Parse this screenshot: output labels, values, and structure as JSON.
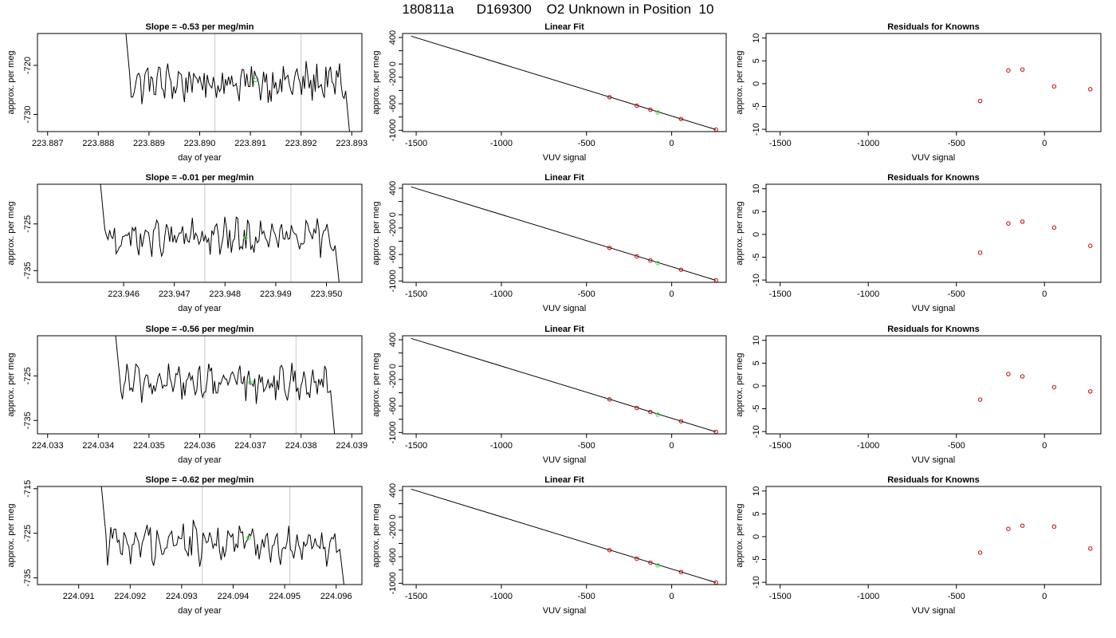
{
  "title": "180811a      D169300    O2 Unknown in Position  10",
  "colors": {
    "trace": "#000000",
    "known_point": "#cc0000",
    "unknown_point": "#33dd33",
    "interval_line": "#c8c8c8",
    "axis": "#000000"
  },
  "chart_data": [
    {
      "type": "line",
      "row": 1,
      "title": "Slope =  -0.53  per meg/min",
      "xlabel": "day of year",
      "ylabel": "approx. per meg",
      "xlim": [
        223.8868,
        223.8932
      ],
      "ylim": [
        -733.5,
        -713.5
      ],
      "xticks": [
        223.887,
        223.888,
        223.889,
        223.89,
        223.891,
        223.892,
        223.893
      ],
      "xtick_labels": [
        "223.887",
        "223.888",
        "223.889",
        "223.890",
        "223.891",
        "223.892",
        "223.893"
      ],
      "yticks": [
        -730,
        -720
      ],
      "ytick_labels": [
        "-730",
        "-720"
      ],
      "vlines": [
        223.8903,
        223.892
      ],
      "x_start": 223.8885,
      "x_end": 223.893,
      "baseline": -723.5,
      "amplitude": 3,
      "marker": {
        "x": 223.8911,
        "y": -723
      }
    },
    {
      "type": "scatter",
      "row": 1,
      "title": "Linear Fit",
      "xlabel": "VUV signal",
      "ylabel": "approx. per meg",
      "xlim": [
        -1580,
        320
      ],
      "ylim": [
        -1020,
        460
      ],
      "xticks": [
        -1500,
        -1000,
        -500,
        0
      ],
      "xtick_labels": [
        "-1500",
        "-1000",
        "-500",
        "0"
      ],
      "yticks": [
        -1000,
        -800,
        -600,
        -400,
        -200,
        0,
        200,
        400
      ],
      "ytick_labels": [
        "-1000",
        "",
        "-600",
        "",
        "-200",
        "0",
        "",
        "400"
      ],
      "fit_line": [
        [
          -1530,
          420
        ],
        [
          260,
          -990
        ]
      ],
      "knowns": [
        [
          -365,
          -500
        ],
        [
          -205,
          -630
        ],
        [
          -125,
          -690
        ],
        [
          55,
          -830
        ],
        [
          260,
          -990
        ]
      ],
      "unknown": [
        -82,
        -730
      ]
    },
    {
      "type": "scatter",
      "row": 1,
      "title": "Residuals for Knowns",
      "xlabel": "VUV signal",
      "ylabel": "approx. per meg",
      "xlim": [
        -1580,
        320
      ],
      "ylim": [
        -10.5,
        11
      ],
      "xticks": [
        -1500,
        -1000,
        -500,
        0
      ],
      "xtick_labels": [
        "-1500",
        "-1000",
        "-500",
        "0"
      ],
      "yticks": [
        -10,
        -5,
        0,
        5,
        10
      ],
      "ytick_labels": [
        "-10",
        "-5",
        "0",
        "5",
        "10"
      ],
      "points": [
        [
          -365,
          -3.8
        ],
        [
          -205,
          2.9
        ],
        [
          -125,
          3.1
        ],
        [
          55,
          -0.6
        ],
        [
          260,
          -1.2
        ]
      ]
    },
    {
      "type": "line",
      "row": 2,
      "title": "Slope =  -0.01  per meg/min",
      "xlabel": "day of year",
      "ylabel": "approx. per meg",
      "xlim": [
        223.9443,
        223.9507
      ],
      "ylim": [
        -737.5,
        -716.5
      ],
      "xticks": [
        223.946,
        223.947,
        223.948,
        223.949,
        223.95
      ],
      "xtick_labels": [
        "223.946",
        "223.947",
        "223.948",
        "223.949",
        "223.950"
      ],
      "yticks": [
        -735,
        -725
      ],
      "ytick_labels": [
        "-735",
        "-725"
      ],
      "vlines": [
        223.9476,
        223.9493
      ],
      "x_start": 223.9455,
      "x_end": 223.9503,
      "baseline": -728,
      "amplitude": 3,
      "marker": {
        "x": 223.9484,
        "y": -728
      }
    },
    {
      "type": "scatter",
      "row": 2,
      "title": "Linear Fit",
      "xlabel": "VUV signal",
      "ylabel": "approx. per meg",
      "xlim": [
        -1580,
        320
      ],
      "ylim": [
        -1020,
        460
      ],
      "xticks": [
        -1500,
        -1000,
        -500,
        0
      ],
      "xtick_labels": [
        "-1500",
        "-1000",
        "-500",
        "0"
      ],
      "yticks": [
        -1000,
        -800,
        -600,
        -400,
        -200,
        0,
        200,
        400
      ],
      "ytick_labels": [
        "-1000",
        "",
        "-600",
        "",
        "-200",
        "0",
        "",
        "400"
      ],
      "fit_line": [
        [
          -1530,
          420
        ],
        [
          260,
          -990
        ]
      ],
      "knowns": [
        [
          -365,
          -500
        ],
        [
          -205,
          -630
        ],
        [
          -125,
          -690
        ],
        [
          55,
          -830
        ],
        [
          260,
          -990
        ]
      ],
      "unknown": [
        -82,
        -730
      ]
    },
    {
      "type": "scatter",
      "row": 2,
      "title": "Residuals for Knowns",
      "xlabel": "VUV signal",
      "ylabel": "approx. per meg",
      "xlim": [
        -1580,
        320
      ],
      "ylim": [
        -10.5,
        11
      ],
      "xticks": [
        -1500,
        -1000,
        -500,
        0
      ],
      "xtick_labels": [
        "-1500",
        "-1000",
        "-500",
        "0"
      ],
      "yticks": [
        -10,
        -5,
        0,
        5,
        10
      ],
      "ytick_labels": [
        "-10",
        "-5",
        "0",
        "5",
        "10"
      ],
      "points": [
        [
          -365,
          -4
        ],
        [
          -205,
          2.4
        ],
        [
          -125,
          2.8
        ],
        [
          55,
          1.5
        ],
        [
          260,
          -2.5
        ]
      ]
    },
    {
      "type": "line",
      "row": 3,
      "title": "Slope =  -0.56  per meg/min",
      "xlabel": "day of year",
      "ylabel": "approx. per meg",
      "xlim": [
        224.0328,
        224.0392
      ],
      "ylim": [
        -738,
        -716
      ],
      "xticks": [
        224.033,
        224.034,
        224.035,
        224.036,
        224.037,
        224.038,
        224.039
      ],
      "xtick_labels": [
        "224.033",
        "224.034",
        "224.035",
        "224.036",
        "224.037",
        "224.038",
        "224.039"
      ],
      "yticks": [
        -735,
        -725
      ],
      "ytick_labels": [
        "-735",
        "-725"
      ],
      "vlines": [
        224.0361,
        224.0379
      ],
      "x_start": 224.0343,
      "x_end": 224.0387,
      "baseline": -726.5,
      "amplitude": 3,
      "marker": {
        "x": 224.037,
        "y": -726.5
      }
    },
    {
      "type": "scatter",
      "row": 3,
      "title": "Linear Fit",
      "xlabel": "VUV signal",
      "ylabel": "approx. per meg",
      "xlim": [
        -1580,
        320
      ],
      "ylim": [
        -1020,
        460
      ],
      "xticks": [
        -1500,
        -1000,
        -500,
        0
      ],
      "xtick_labels": [
        "-1500",
        "-1000",
        "-500",
        "0"
      ],
      "yticks": [
        -1000,
        -800,
        -600,
        -400,
        -200,
        0,
        200,
        400
      ],
      "ytick_labels": [
        "-1000",
        "",
        "-600",
        "",
        "-200",
        "0",
        "",
        "400"
      ],
      "fit_line": [
        [
          -1530,
          420
        ],
        [
          260,
          -990
        ]
      ],
      "knowns": [
        [
          -365,
          -500
        ],
        [
          -205,
          -630
        ],
        [
          -125,
          -690
        ],
        [
          55,
          -830
        ],
        [
          260,
          -990
        ]
      ],
      "unknown": [
        -82,
        -730
      ]
    },
    {
      "type": "scatter",
      "row": 3,
      "title": "Residuals for Knowns",
      "xlabel": "VUV signal",
      "ylabel": "approx. per meg",
      "xlim": [
        -1580,
        320
      ],
      "ylim": [
        -10.5,
        11
      ],
      "xticks": [
        -1500,
        -1000,
        -500,
        0
      ],
      "xtick_labels": [
        "-1500",
        "-1000",
        "-500",
        "0"
      ],
      "yticks": [
        -10,
        -5,
        0,
        5,
        10
      ],
      "ytick_labels": [
        "-10",
        "-5",
        "0",
        "5",
        "10"
      ],
      "points": [
        [
          -365,
          -3
        ],
        [
          -205,
          2.6
        ],
        [
          -125,
          2.1
        ],
        [
          55,
          -0.3
        ],
        [
          260,
          -1.2
        ]
      ]
    },
    {
      "type": "line",
      "row": 4,
      "title": "Slope =  -0.62  per meg/min",
      "xlabel": "day of year",
      "ylabel": "approx. per meg",
      "xlim": [
        224.0902,
        224.0965
      ],
      "ylim": [
        -736.5,
        -714.5
      ],
      "xticks": [
        224.091,
        224.092,
        224.093,
        224.094,
        224.095,
        224.096
      ],
      "xtick_labels": [
        "224.091",
        "224.092",
        "224.093",
        "224.094",
        "224.095",
        "224.096"
      ],
      "yticks": [
        -735,
        -725,
        -715
      ],
      "ytick_labels": [
        "-735",
        "-725",
        "-715"
      ],
      "vlines": [
        224.0934,
        224.0951
      ],
      "x_start": 224.0914,
      "x_end": 224.0962,
      "baseline": -727,
      "amplitude": 3.5,
      "marker": {
        "x": 224.0943,
        "y": -726
      }
    },
    {
      "type": "scatter",
      "row": 4,
      "title": "Linear Fit",
      "xlabel": "VUV signal",
      "ylabel": "approx. per meg",
      "xlim": [
        -1580,
        320
      ],
      "ylim": [
        -1020,
        460
      ],
      "xticks": [
        -1500,
        -1000,
        -500,
        0
      ],
      "xtick_labels": [
        "-1500",
        "-1000",
        "-500",
        "0"
      ],
      "yticks": [
        -1000,
        -800,
        -600,
        -400,
        -200,
        0,
        200,
        400
      ],
      "ytick_labels": [
        "-1000",
        "",
        "-600",
        "",
        "-200",
        "0",
        "",
        "400"
      ],
      "fit_line": [
        [
          -1530,
          420
        ],
        [
          260,
          -990
        ]
      ],
      "knowns": [
        [
          -365,
          -500
        ],
        [
          -205,
          -630
        ],
        [
          -125,
          -690
        ],
        [
          55,
          -830
        ],
        [
          260,
          -990
        ]
      ],
      "unknown": [
        -82,
        -730
      ]
    },
    {
      "type": "scatter",
      "row": 4,
      "title": "Residuals for Knowns",
      "xlabel": "VUV signal",
      "ylabel": "approx. per meg",
      "xlim": [
        -1580,
        320
      ],
      "ylim": [
        -10.5,
        11
      ],
      "xticks": [
        -1500,
        -1000,
        -500,
        0
      ],
      "xtick_labels": [
        "-1500",
        "-1000",
        "-500",
        "0"
      ],
      "yticks": [
        -10,
        -5,
        0,
        5,
        10
      ],
      "ytick_labels": [
        "-10",
        "-5",
        "0",
        "5",
        "10"
      ],
      "points": [
        [
          -365,
          -3.5
        ],
        [
          -205,
          1.7
        ],
        [
          -125,
          2.4
        ],
        [
          55,
          2.2
        ],
        [
          260,
          -2.6
        ]
      ]
    }
  ]
}
